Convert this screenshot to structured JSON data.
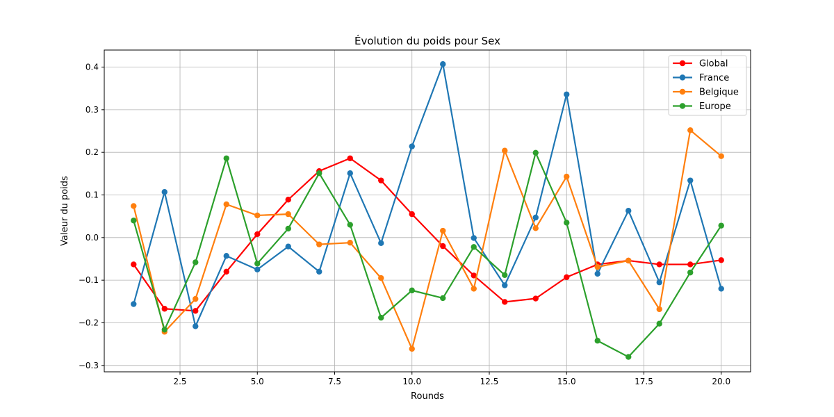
{
  "chart_data": {
    "type": "line",
    "title": "Évolution du poids pour Sex",
    "xlabel": "Rounds",
    "ylabel": "Valeur du poids",
    "xlim": [
      0.05,
      20.95
    ],
    "ylim": [
      -0.315,
      0.44
    ],
    "xticks": [
      2.5,
      5.0,
      7.5,
      10.0,
      12.5,
      15.0,
      17.5,
      20.0
    ],
    "xtick_labels": [
      "2.5",
      "5.0",
      "7.5",
      "10.0",
      "12.5",
      "15.0",
      "17.5",
      "20.0"
    ],
    "yticks": [
      -0.3,
      -0.2,
      -0.1,
      0.0,
      0.1,
      0.2,
      0.3,
      0.4
    ],
    "ytick_labels": [
      "−0.3",
      "−0.2",
      "−0.1",
      "0.0",
      "0.1",
      "0.2",
      "0.3",
      "0.4"
    ],
    "grid": true,
    "legend_position": "top-right",
    "x": [
      1,
      2,
      3,
      4,
      5,
      6,
      7,
      8,
      9,
      10,
      11,
      12,
      13,
      14,
      15,
      16,
      17,
      18,
      19,
      20
    ],
    "series": [
      {
        "name": "Global",
        "color": "#ff0000",
        "values": [
          -0.063,
          -0.167,
          -0.172,
          -0.08,
          0.008,
          0.089,
          0.156,
          0.186,
          0.134,
          0.055,
          -0.02,
          -0.089,
          -0.151,
          -0.143,
          -0.093,
          -0.063,
          -0.054,
          -0.063,
          -0.063,
          -0.053
        ]
      },
      {
        "name": "France",
        "color": "#1f77b4",
        "values": [
          -0.156,
          0.107,
          -0.208,
          -0.043,
          -0.075,
          -0.021,
          -0.08,
          0.151,
          -0.013,
          0.214,
          0.407,
          -0.001,
          -0.112,
          0.047,
          0.336,
          -0.085,
          0.063,
          -0.105,
          0.134,
          -0.12
        ]
      },
      {
        "name": "Belgique",
        "color": "#ff7f0e",
        "values": [
          0.074,
          -0.221,
          -0.144,
          0.078,
          0.052,
          0.055,
          -0.016,
          -0.012,
          -0.095,
          -0.261,
          0.016,
          -0.12,
          0.204,
          0.022,
          0.143,
          -0.069,
          -0.054,
          -0.168,
          0.252,
          0.191
        ]
      },
      {
        "name": "Europe",
        "color": "#2ca02c",
        "values": [
          0.04,
          -0.216,
          -0.058,
          0.186,
          -0.061,
          0.021,
          0.151,
          0.03,
          -0.188,
          -0.124,
          -0.142,
          -0.022,
          -0.088,
          0.199,
          0.035,
          -0.242,
          -0.28,
          -0.202,
          -0.082,
          0.028
        ]
      }
    ]
  }
}
